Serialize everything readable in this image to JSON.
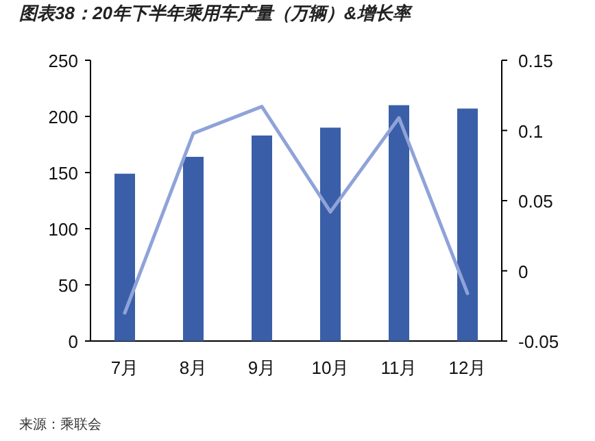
{
  "chart_data": {
    "type": "bar",
    "title": "图表38：20年下半年乘用车产量（万辆）&增长率",
    "categories": [
      "7月",
      "8月",
      "9月",
      "10月",
      "11月",
      "12月"
    ],
    "series": [
      {
        "color": "#3a5fa8",
        "values": [
          149,
          164,
          183,
          190,
          210,
          207
        ]
      },
      {
        "type": "line",
        "axis": "y2",
        "color": "#8fa3d9",
        "values": [
          -0.03,
          0.098,
          0.117,
          0.042,
          0.109,
          -0.016
        ]
      }
    ],
    "ylim": [
      0,
      250
    ],
    "yticks": [
      0,
      50,
      100,
      150,
      200,
      250
    ],
    "y2lim": [
      -0.05,
      0.15
    ],
    "y2ticks": [
      {
        "value": -0.05,
        "label": "-0.05"
      },
      0,
      0.05,
      {
        "value": 0.1,
        "label": "0.1"
      },
      0.15
    ],
    "grid": false,
    "annotations": [
      "来源：乘联会"
    ]
  }
}
